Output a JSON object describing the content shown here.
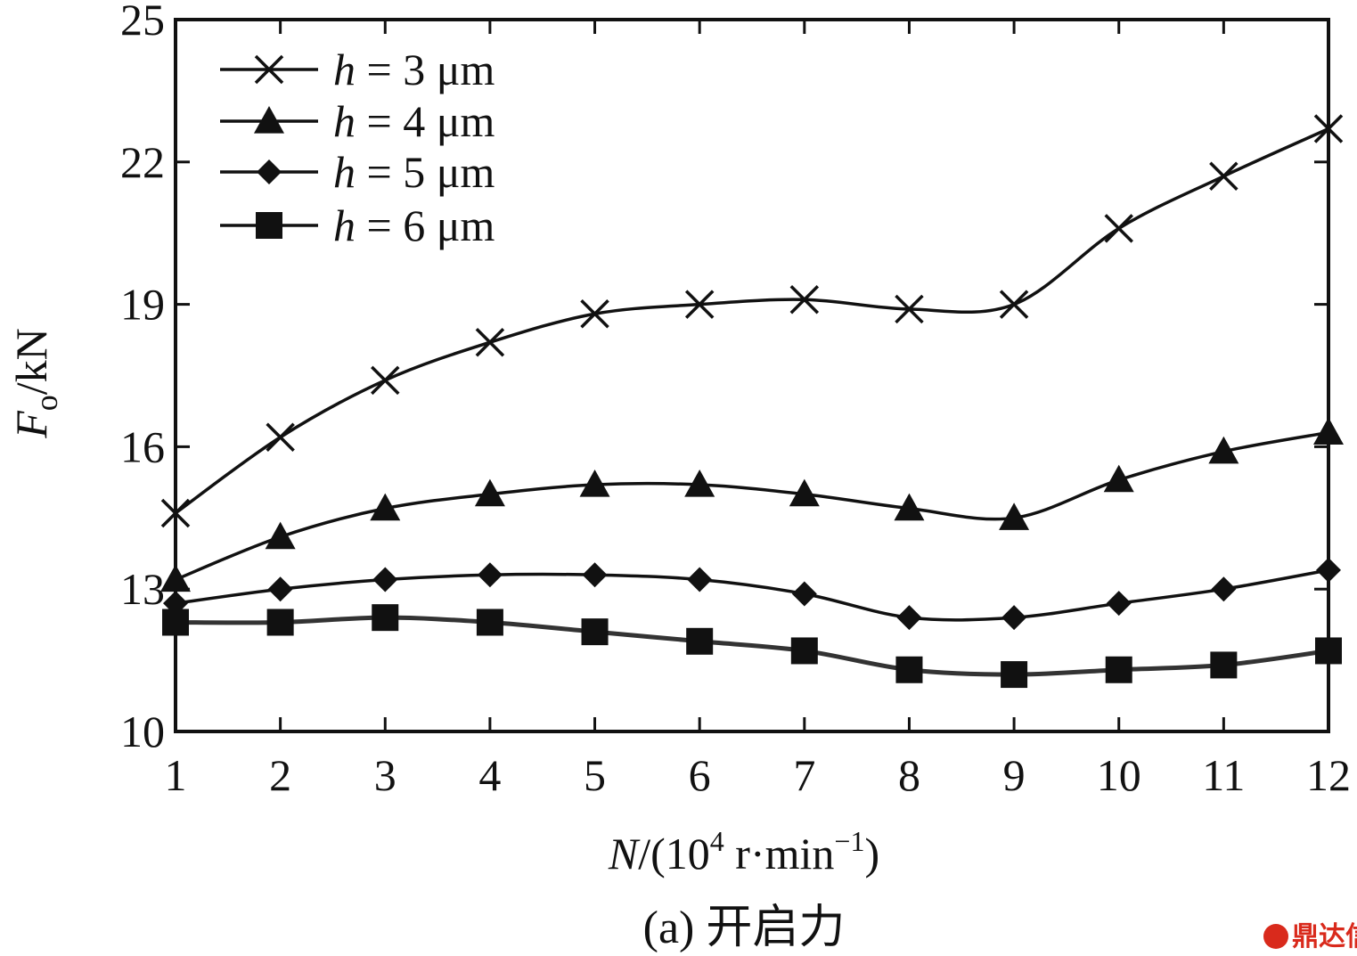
{
  "chart_data": {
    "type": "line",
    "xlabel": {
      "var": "N",
      "prefix": "/(10",
      "exp": "4",
      "unit": " r·min",
      "unit_exp": "−1",
      "close": ")"
    },
    "ylabel": {
      "var": "F",
      "sub": "o",
      "unit": "/kN"
    },
    "x": [
      1,
      2,
      3,
      4,
      5,
      6,
      7,
      8,
      9,
      10,
      11,
      12
    ],
    "x_tick_labels": [
      "1",
      "2",
      "3",
      "4",
      "5",
      "6",
      "7",
      "8",
      "9",
      "10",
      "11",
      "12"
    ],
    "y_ticks": [
      10,
      13,
      16,
      19,
      22,
      25
    ],
    "y_tick_labels": [
      "10",
      "13",
      "16",
      "19",
      "22",
      "25"
    ],
    "xlim": [
      1,
      12
    ],
    "ylim": [
      10,
      25
    ],
    "grid": false,
    "legend_position": "top-left",
    "series": [
      {
        "name": "h = 3 μm",
        "var": "h",
        "rest": " = 3 μm",
        "marker": "x",
        "color": "#111111",
        "values": [
          14.6,
          16.2,
          17.4,
          18.2,
          18.8,
          19.0,
          19.1,
          18.9,
          19.0,
          20.6,
          21.7,
          22.7
        ]
      },
      {
        "name": "h = 4 μm",
        "var": "h",
        "rest": " = 4 μm",
        "marker": "triangle",
        "color": "#111111",
        "values": [
          13.2,
          14.1,
          14.7,
          15.0,
          15.2,
          15.2,
          15.0,
          14.7,
          14.5,
          15.3,
          15.9,
          16.3
        ]
      },
      {
        "name": "h = 5 μm",
        "var": "h",
        "rest": " = 5 μm",
        "marker": "diamond",
        "color": "#111111",
        "values": [
          12.7,
          13.0,
          13.2,
          13.3,
          13.3,
          13.2,
          12.9,
          12.4,
          12.4,
          12.7,
          13.0,
          13.4
        ]
      },
      {
        "name": "h = 6 μm",
        "var": "h",
        "rest": " = 6 μm",
        "marker": "square",
        "color": "#333333",
        "values": [
          12.3,
          12.3,
          12.4,
          12.3,
          12.1,
          11.9,
          11.7,
          11.3,
          11.2,
          11.3,
          11.4,
          11.7
        ]
      }
    ]
  },
  "caption": "(a) 开启力",
  "watermark": "鼎达信"
}
